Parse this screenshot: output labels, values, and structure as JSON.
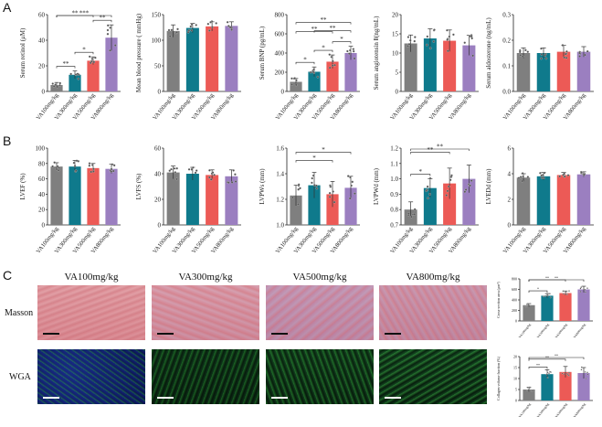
{
  "panels": {
    "A": "A",
    "B": "B",
    "C": "C"
  },
  "colors": {
    "VA100mg/kg": "#7f7f7f",
    "VA300mg/kg": "#0f7a8c",
    "VA500mg/kg": "#ec5a56",
    "VA800mg/kg": "#9b7fc0"
  },
  "groups": [
    "VA100mg/kg",
    "VA300mg/kg",
    "VA500mg/kg",
    "VA800mg/kg"
  ],
  "chart_data": [
    {
      "id": "A1",
      "type": "bar",
      "categories": [
        "VA100mg/kg",
        "VA300mg/kg",
        "VA500mg/kg",
        "VA800mg/kg"
      ],
      "values": [
        5,
        13,
        24,
        42
      ],
      "errors": [
        2,
        3,
        3,
        10
      ],
      "ylabel": "Serum retinol (μM)",
      "ylim": [
        0,
        60
      ],
      "yticks": [
        0,
        20,
        40,
        60
      ],
      "significance": [
        {
          "from": 0,
          "to": 1,
          "label": "**"
        },
        {
          "from": 1,
          "to": 2,
          "label": "*"
        },
        {
          "from": 2,
          "to": 3,
          "label": "**"
        },
        {
          "from": 0,
          "to": 2,
          "label": "**"
        },
        {
          "from": 0,
          "to": 3,
          "label": "***"
        }
      ]
    },
    {
      "id": "A2",
      "type": "bar",
      "categories": [
        "VA100mg/kg",
        "VA300mg/kg",
        "VA500mg/kg",
        "VA800mg/kg"
      ],
      "values": [
        118,
        124,
        127,
        128
      ],
      "errors": [
        12,
        9,
        9,
        8
      ],
      "ylabel": "Mean blood pressure ( mmHg)",
      "ylim": [
        0,
        150
      ],
      "yticks": [
        0,
        50,
        100,
        150
      ],
      "significance": []
    },
    {
      "id": "A3",
      "type": "bar",
      "categories": [
        "VA100mg/kg",
        "VA300mg/kg",
        "VA500mg/kg",
        "VA800mg/kg"
      ],
      "values": [
        100,
        205,
        310,
        400
      ],
      "errors": [
        35,
        50,
        70,
        70
      ],
      "ylabel": "Serum BNP (pg/mL)",
      "ylim": [
        0,
        800
      ],
      "yticks": [
        0,
        200,
        400,
        600,
        800
      ],
      "significance": [
        {
          "from": 0,
          "to": 1,
          "label": "*"
        },
        {
          "from": 1,
          "to": 2,
          "label": "*"
        },
        {
          "from": 2,
          "to": 3,
          "label": "*"
        },
        {
          "from": 0,
          "to": 2,
          "label": "**"
        },
        {
          "from": 1,
          "to": 3,
          "label": "**"
        },
        {
          "from": 0,
          "to": 3,
          "label": "**"
        }
      ]
    },
    {
      "id": "A4",
      "type": "bar",
      "categories": [
        "VA100mg/kg",
        "VA300mg/kg",
        "VA500mg/kg",
        "VA800mg/kg"
      ],
      "values": [
        12.5,
        13.8,
        13.2,
        12.0
      ],
      "errors": [
        2.2,
        2.5,
        2.8,
        2.6
      ],
      "ylabel": "Serum angiotensin Ⅱ(ng/mL)",
      "ylim": [
        0,
        20
      ],
      "yticks": [
        0,
        5,
        10,
        15,
        20
      ],
      "significance": []
    },
    {
      "id": "A5",
      "type": "bar",
      "categories": [
        "VA100mg/kg",
        "VA300mg/kg",
        "VA500mg/kg",
        "VA800mg/kg"
      ],
      "values": [
        0.15,
        0.15,
        0.155,
        0.155
      ],
      "errors": [
        0.02,
        0.02,
        0.025,
        0.02
      ],
      "ylabel": "Serum aldosterone (ng/mL)",
      "ylim": [
        0,
        0.3
      ],
      "yticks": [
        0.0,
        0.1,
        0.2,
        0.3
      ],
      "significance": []
    },
    {
      "id": "B1",
      "type": "bar",
      "categories": [
        "VA100mg/kg",
        "VA300mg/kg",
        "VA500mg/kg",
        "VA800mg/kg"
      ],
      "values": [
        76,
        76,
        74,
        73
      ],
      "errors": [
        5,
        8,
        6,
        6
      ],
      "ylabel": "LVEF (%)",
      "ylim": [
        0,
        100
      ],
      "yticks": [
        0,
        20,
        40,
        60,
        80,
        100
      ],
      "significance": []
    },
    {
      "id": "B2",
      "type": "bar",
      "categories": [
        "VA100mg/kg",
        "VA300mg/kg",
        "VA500mg/kg",
        "VA800mg/kg"
      ],
      "values": [
        41,
        40,
        39,
        38
      ],
      "errors": [
        5,
        5,
        4,
        5
      ],
      "ylabel": "LVFS (%)",
      "ylim": [
        0,
        60
      ],
      "yticks": [
        0,
        20,
        40,
        60
      ],
      "significance": []
    },
    {
      "id": "B3",
      "type": "bar",
      "categories": [
        "VA100mg/kg",
        "VA300mg/kg",
        "VA500mg/kg",
        "VA800mg/kg"
      ],
      "values": [
        1.23,
        1.31,
        1.24,
        1.29
      ],
      "errors": [
        0.08,
        0.1,
        0.1,
        0.09
      ],
      "ylabel": "LVPWs (mm)",
      "ylim": [
        1.0,
        1.6
      ],
      "yticks": [
        1.0,
        1.2,
        1.4,
        1.6
      ],
      "significance": [
        {
          "from": 0,
          "to": 2,
          "label": "*"
        },
        {
          "from": 0,
          "to": 3,
          "label": "*"
        }
      ]
    },
    {
      "id": "B4",
      "type": "bar",
      "categories": [
        "VA100mg/kg",
        "VA300mg/kg",
        "VA500mg/kg",
        "VA800mg/kg"
      ],
      "values": [
        0.8,
        0.94,
        0.97,
        1.0
      ],
      "errors": [
        0.05,
        0.06,
        0.1,
        0.09
      ],
      "ylabel": "LVPWd (mm)",
      "ylim": [
        0.7,
        1.2
      ],
      "yticks": [
        0.7,
        0.8,
        0.9,
        1.0,
        1.1,
        1.2
      ],
      "significance": [
        {
          "from": 0,
          "to": 1,
          "label": "*"
        },
        {
          "from": 0,
          "to": 2,
          "label": "**"
        },
        {
          "from": 0,
          "to": 3,
          "label": "**"
        }
      ]
    },
    {
      "id": "B5",
      "type": "bar",
      "categories": [
        "VA100mg/kg",
        "VA300mg/kg",
        "VA500mg/kg",
        "VA800mg/kg"
      ],
      "values": [
        3.7,
        3.8,
        3.9,
        3.95
      ],
      "errors": [
        0.3,
        0.3,
        0.2,
        0.2
      ],
      "ylabel": "LVEDd (mm)",
      "ylim": [
        0,
        6
      ],
      "yticks": [
        0,
        2,
        4,
        6
      ],
      "significance": []
    },
    {
      "id": "C1",
      "type": "bar",
      "categories": [
        "VA100mg/kg",
        "VA300mg/kg",
        "VA500mg/kg",
        "VA800mg/kg"
      ],
      "values": [
        300,
        480,
        530,
        600
      ],
      "errors": [
        30,
        40,
        40,
        60
      ],
      "ylabel": "Cross-section area (μm²)",
      "ylim": [
        0,
        800
      ],
      "yticks": [
        0,
        200,
        400,
        600,
        800
      ],
      "significance": [
        {
          "from": 0,
          "to": 1,
          "label": "*"
        },
        {
          "from": 0,
          "to": 2,
          "label": "**"
        },
        {
          "from": 0,
          "to": 3,
          "label": "**"
        }
      ]
    },
    {
      "id": "C2",
      "type": "bar",
      "categories": [
        "VA100mg/kg",
        "VA300mg/kg",
        "VA500mg/kg",
        "VA800mg/kg"
      ],
      "values": [
        5,
        12,
        13,
        12.5
      ],
      "errors": [
        1,
        2,
        2.5,
        2.5
      ],
      "ylabel": "Collagen volume fraction (%)",
      "ylim": [
        0,
        20
      ],
      "yticks": [
        0,
        5,
        10,
        15,
        20
      ],
      "significance": [
        {
          "from": 0,
          "to": 1,
          "label": "**"
        },
        {
          "from": 0,
          "to": 2,
          "label": "**"
        },
        {
          "from": 0,
          "to": 3,
          "label": "**"
        }
      ]
    }
  ],
  "micrographs": {
    "columns": [
      "VA100mg/kg",
      "VA300mg/kg",
      "VA500mg/kg",
      "VA800mg/kg"
    ],
    "rows": [
      "Masson",
      "WGA"
    ]
  }
}
